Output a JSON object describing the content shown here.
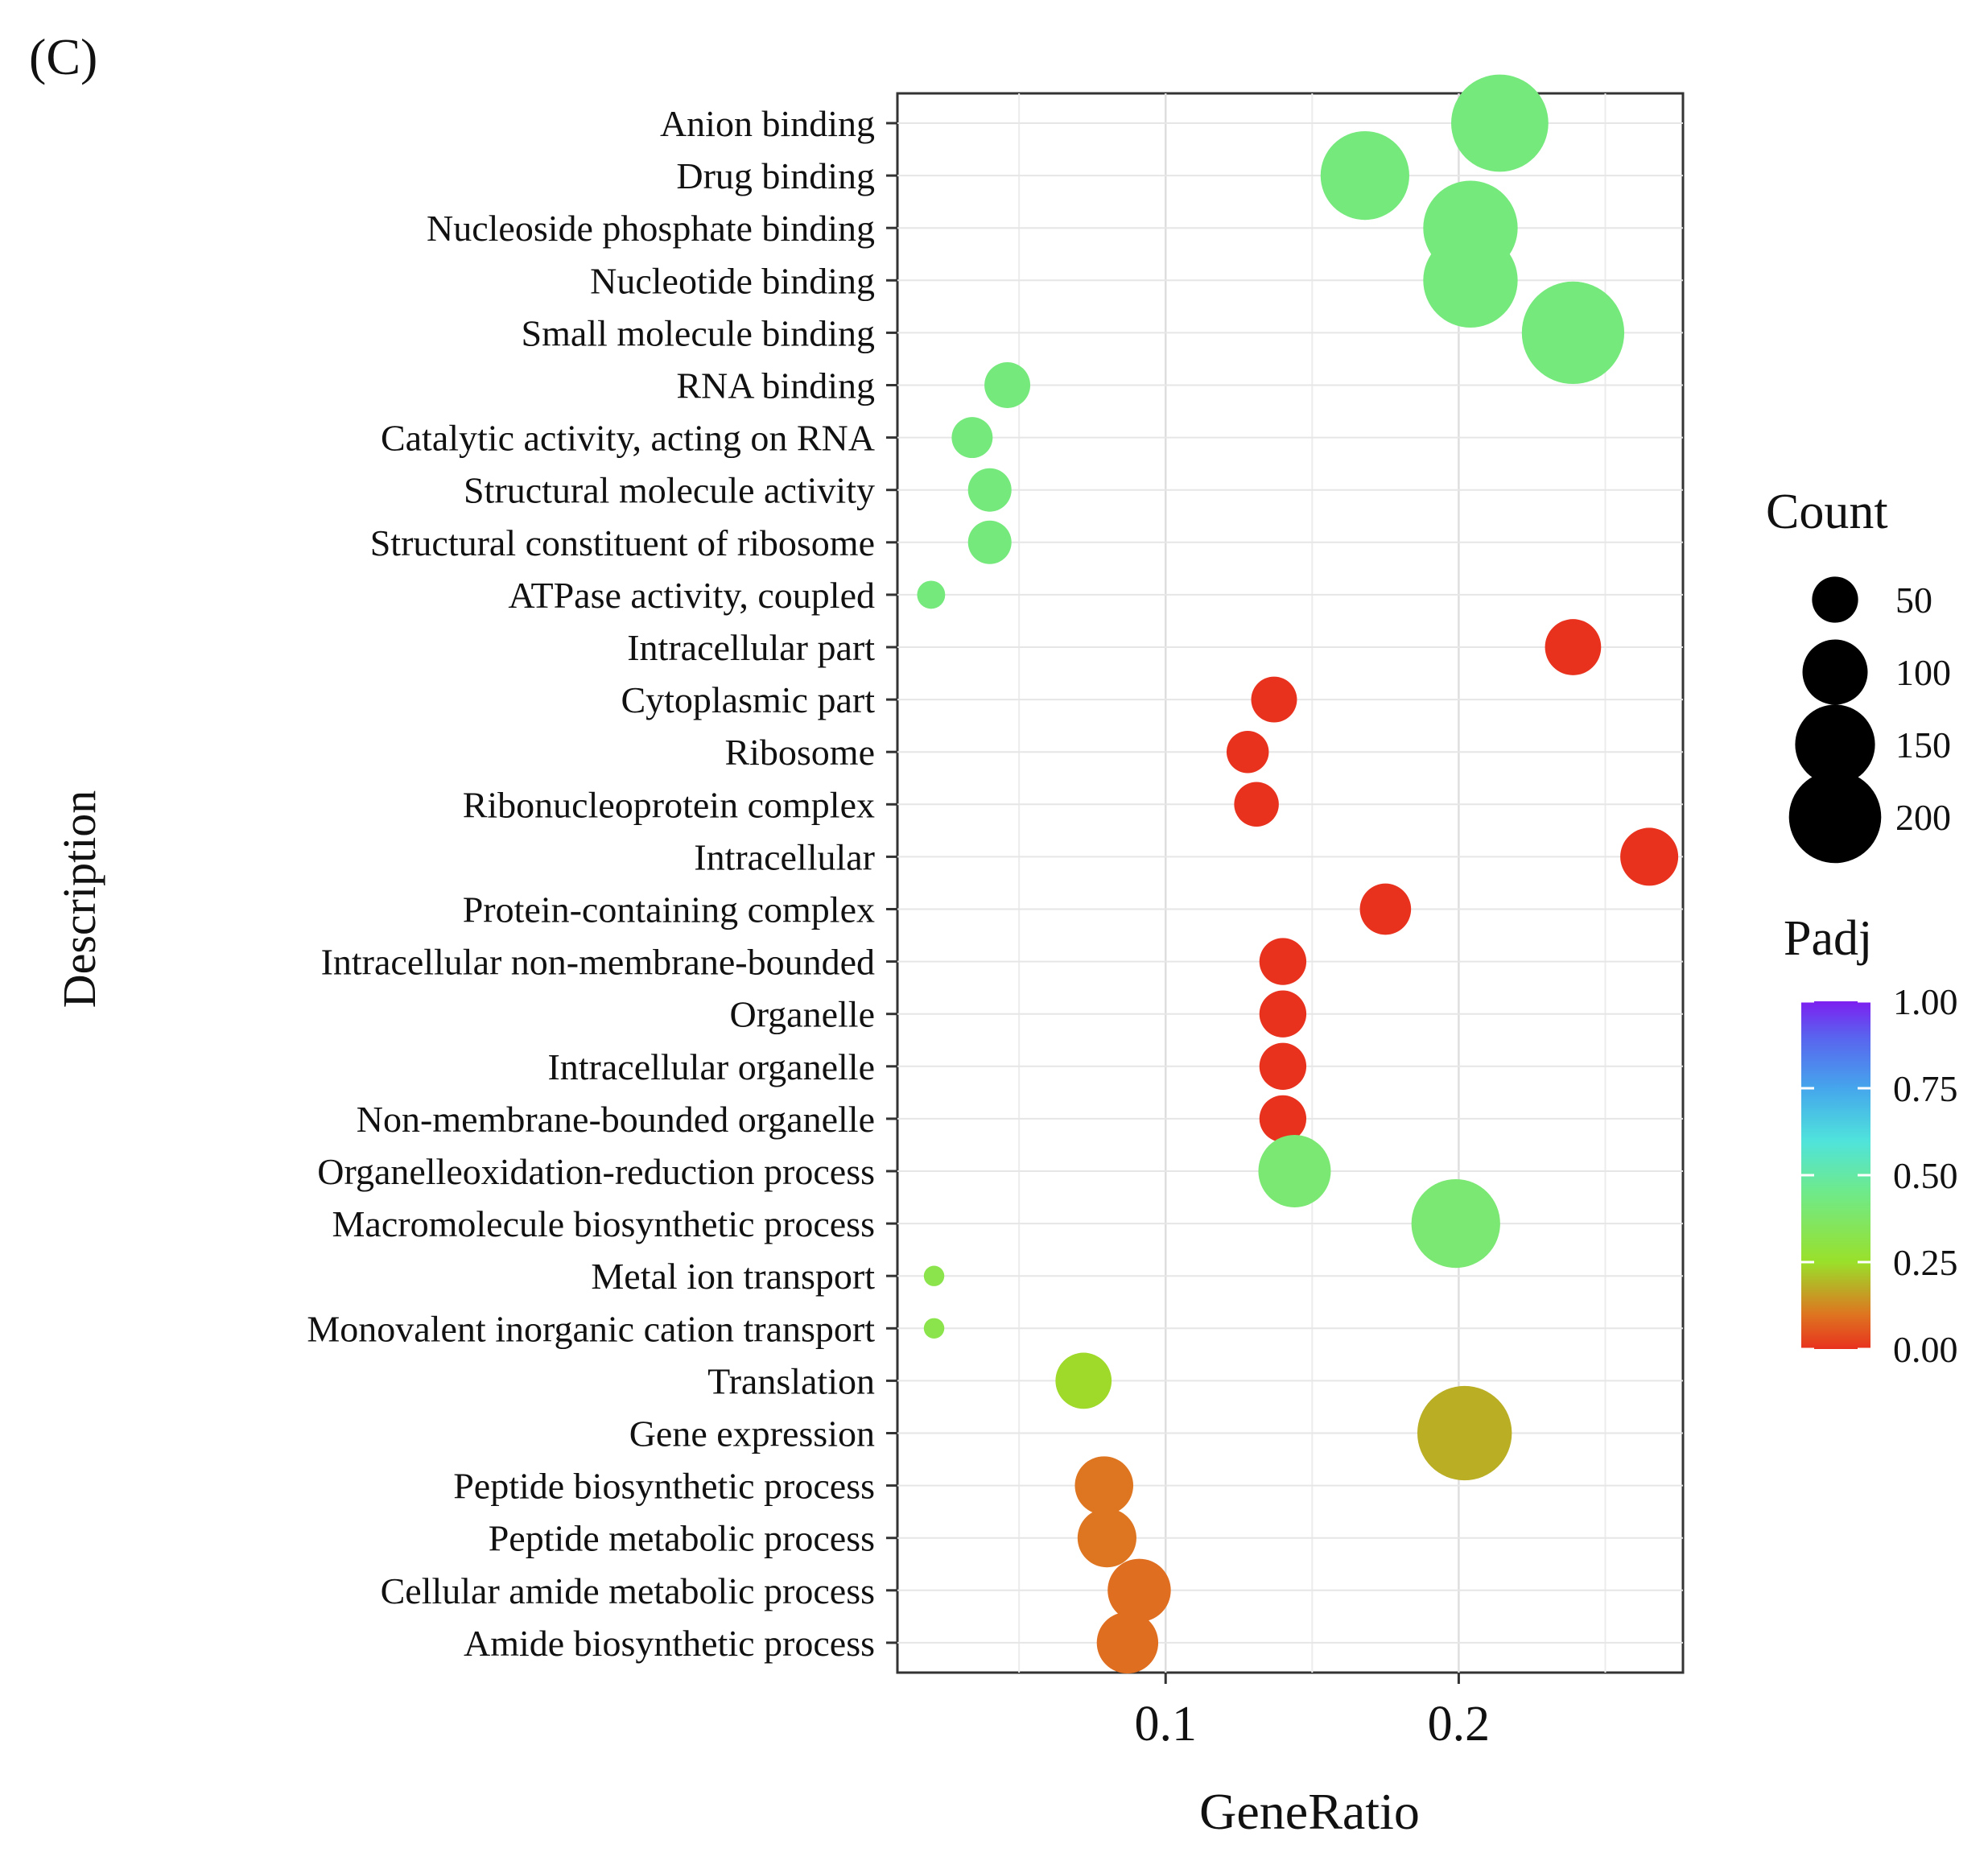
{
  "figure": {
    "panel_label": "(C)"
  },
  "chart_data": {
    "type": "scatter",
    "subtype": "dot-plot",
    "title": "",
    "xlabel": "GeneRatio",
    "ylabel": "Description",
    "xlim": [
      0.0085,
      0.2765
    ],
    "xticks": [
      0.1,
      0.2
    ],
    "xtick_labels": [
      "0.1",
      "0.2"
    ],
    "grid": true,
    "legend_position": "right",
    "size_legend": {
      "title": "Count",
      "values": [
        50,
        100,
        150,
        200
      ],
      "labels": [
        "50",
        "100",
        "150",
        "200"
      ]
    },
    "color_legend": {
      "title": "Padj",
      "range": [
        0,
        1
      ],
      "ticks": [
        1.0,
        0.75,
        0.5,
        0.25,
        0.0
      ],
      "labels": [
        "1.00",
        "0.75",
        "0.50",
        "0.25",
        "0.00"
      ],
      "colormap": [
        [
          0.0,
          "#e8321e"
        ],
        [
          0.1,
          "#de7520"
        ],
        [
          0.25,
          "#9ae02a"
        ],
        [
          0.45,
          "#6fea8a"
        ],
        [
          0.6,
          "#4fe3dc"
        ],
        [
          0.75,
          "#45a6ec"
        ],
        [
          0.9,
          "#5a62ef"
        ],
        [
          1.0,
          "#7d1ff0"
        ]
      ]
    },
    "points": [
      {
        "label": "Anion binding",
        "x": 0.214,
        "count": 180,
        "padj": 0.42
      },
      {
        "label": "Drug binding",
        "x": 0.168,
        "count": 150,
        "padj": 0.42
      },
      {
        "label": "Nucleoside phosphate binding",
        "x": 0.204,
        "count": 170,
        "padj": 0.42
      },
      {
        "label": "Nucleotide binding",
        "x": 0.204,
        "count": 170,
        "padj": 0.42
      },
      {
        "label": "Small molecule binding",
        "x": 0.239,
        "count": 200,
        "padj": 0.42
      },
      {
        "label": "RNA binding",
        "x": 0.046,
        "count": 40,
        "padj": 0.42
      },
      {
        "label": "Catalytic activity, acting on RNA",
        "x": 0.034,
        "count": 32,
        "padj": 0.42
      },
      {
        "label": "Structural molecule activity",
        "x": 0.04,
        "count": 36,
        "padj": 0.42
      },
      {
        "label": "Structural constituent of ribosome",
        "x": 0.04,
        "count": 36,
        "padj": 0.42
      },
      {
        "label": "ATPase activity, coupled",
        "x": 0.02,
        "count": 15,
        "padj": 0.42
      },
      {
        "label": "Intracellular part",
        "x": 0.239,
        "count": 60,
        "padj": 0.0
      },
      {
        "label": "Cytoplasmic part",
        "x": 0.137,
        "count": 40,
        "padj": 0.0
      },
      {
        "label": "Ribosome",
        "x": 0.128,
        "count": 34,
        "padj": 0.0
      },
      {
        "label": "Ribonucleoprotein complex",
        "x": 0.131,
        "count": 38,
        "padj": 0.0
      },
      {
        "label": "Intracellular",
        "x": 0.265,
        "count": 64,
        "padj": 0.0
      },
      {
        "label": "Protein-containing complex",
        "x": 0.175,
        "count": 50,
        "padj": 0.0
      },
      {
        "label": "Intracellular non-membrane-bounded",
        "x": 0.14,
        "count": 42,
        "padj": 0.0
      },
      {
        "label": "Organelle",
        "x": 0.14,
        "count": 42,
        "padj": 0.0
      },
      {
        "label": "Intracellular organelle",
        "x": 0.14,
        "count": 42,
        "padj": 0.0
      },
      {
        "label": "Non-membrane-bounded organelle",
        "x": 0.14,
        "count": 42,
        "padj": 0.0
      },
      {
        "label": "Organelleoxidation-reduction process",
        "x": 0.144,
        "count": 100,
        "padj": 0.4
      },
      {
        "label": "Macromolecule biosynthetic process",
        "x": 0.199,
        "count": 150,
        "padj": 0.4
      },
      {
        "label": "Metal ion transport",
        "x": 0.021,
        "count": 8,
        "padj": 0.32
      },
      {
        "label": "Monovalent inorganic cation transport",
        "x": 0.021,
        "count": 8,
        "padj": 0.32
      },
      {
        "label": "Translation",
        "x": 0.072,
        "count": 60,
        "padj": 0.24
      },
      {
        "label": "Gene expression",
        "x": 0.202,
        "count": 170,
        "padj": 0.18
      },
      {
        "label": "Peptide biosynthetic process",
        "x": 0.079,
        "count": 65,
        "padj": 0.1
      },
      {
        "label": "Peptide metabolic process",
        "x": 0.08,
        "count": 66,
        "padj": 0.1
      },
      {
        "label": "Cellular amide metabolic process",
        "x": 0.091,
        "count": 76,
        "padj": 0.09
      },
      {
        "label": "Amide biosynthetic process",
        "x": 0.087,
        "count": 72,
        "padj": 0.09
      }
    ]
  }
}
